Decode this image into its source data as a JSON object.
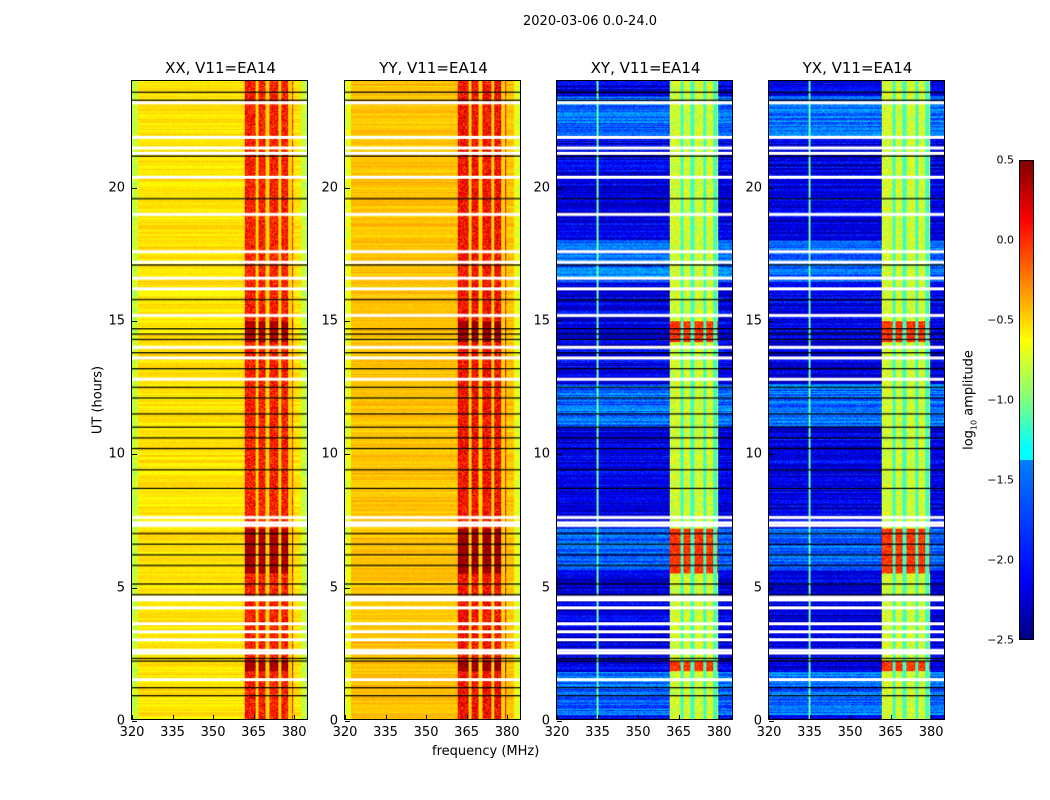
{
  "chart_data": {
    "type": "heatmap",
    "title": "2020-03-06 0.0-24.0",
    "xlabel": "frequency (MHz)",
    "ylabel": "UT (hours)",
    "xlim": [
      320,
      385.5
    ],
    "ylim": [
      0,
      24
    ],
    "xticks": [
      "320",
      "335",
      "350",
      "365",
      "380"
    ],
    "yticks": [
      "0",
      "5",
      "10",
      "15",
      "20"
    ],
    "band_mhz": [
      362,
      380
    ],
    "flagged_hours_white": [
      1.5,
      2.5,
      2.6,
      3.0,
      3.3,
      3.6,
      4.2,
      4.5,
      4.6,
      7.3,
      7.4,
      7.6,
      12.8,
      13.6,
      14.0,
      15.2,
      16.2,
      16.6,
      17.2,
      17.6,
      19.0,
      20.4,
      21.3,
      21.5,
      21.9,
      23.2
    ],
    "flagged_hours_black": [
      0.9,
      1.2,
      2.2,
      2.3,
      4.7,
      5.1,
      5.8,
      6.2,
      6.6,
      7.0,
      8.7,
      9.4,
      10.2,
      10.6,
      11.0,
      11.5,
      12.1,
      12.5,
      13.2,
      13.8,
      14.3,
      14.5,
      14.7,
      15.8,
      17.1,
      19.6,
      21.2,
      23.3,
      23.6
    ],
    "panels": [
      {
        "title": "XX, V11=EA14",
        "base": -0.55,
        "band": 0.05,
        "hot": 0.3
      },
      {
        "title": "YY, V11=EA14",
        "base": -0.45,
        "band": 0.1,
        "hot": 0.35
      },
      {
        "title": "XY, V11=EA14",
        "base": -2.2,
        "band": -0.75,
        "hot": -0.1
      },
      {
        "title": "YX, V11=EA14",
        "base": -2.2,
        "band": -0.75,
        "hot": -0.1
      }
    ],
    "colorbar": {
      "label": "log10 amplitude",
      "label_main": "log",
      "label_sub": "10",
      "label_rest": " amplitude",
      "range": [
        -2.5,
        0.5
      ],
      "ticks": [
        "0.5",
        "0.0",
        "−0.5",
        "−1.0",
        "−1.5",
        "−2.0",
        "−2.5"
      ],
      "colormap": "jet"
    }
  }
}
